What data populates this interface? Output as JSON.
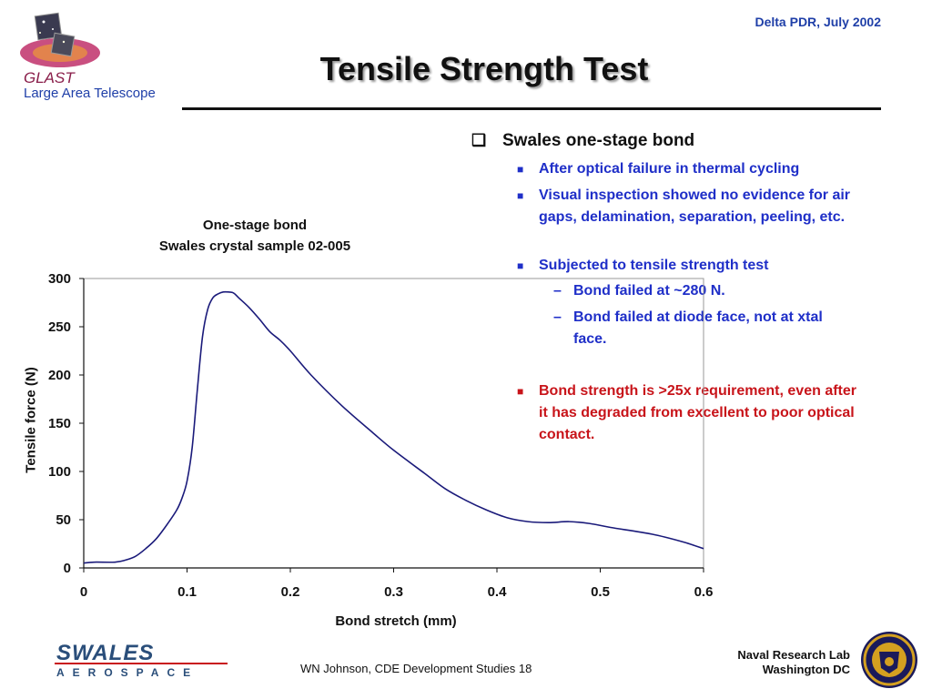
{
  "header": {
    "org_name": "GLAST",
    "org_subtitle": "Large Area Telescope",
    "date": "Delta PDR, July 2002",
    "title": "Tensile Strength Test"
  },
  "bullets": {
    "main": "Swales one-stage bond",
    "items": [
      "After optical failure in thermal cycling",
      "Visual inspection showed no evidence for air gaps, delamination, separation, peeling, etc.",
      "Subjected to tensile strength test"
    ],
    "subitems": [
      "Bond failed at ~280 N.",
      "Bond failed at diode face, not at xtal face."
    ],
    "highlight": "Bond strength is >25x requirement, even after it has degraded from excellent to poor optical contact."
  },
  "chart_data": {
    "type": "line",
    "title": "One-stage bond",
    "subtitle": "Swales crystal sample 02-005",
    "xlabel": "Bond stretch (mm)",
    "ylabel": "Tensile force (N)",
    "xlim": [
      0,
      0.6
    ],
    "ylim": [
      0,
      300
    ],
    "xticks": [
      "0",
      "0.1",
      "0.2",
      "0.3",
      "0.4",
      "0.5",
      "0.6"
    ],
    "yticks": [
      "0",
      "50",
      "100",
      "150",
      "200",
      "250",
      "300"
    ],
    "grid": false,
    "line_color": "#1a1a7a",
    "series": [
      {
        "x": [
          0,
          0.01,
          0.03,
          0.04,
          0.05,
          0.06,
          0.07,
          0.08,
          0.09,
          0.095,
          0.1,
          0.105,
          0.11,
          0.115,
          0.12,
          0.125,
          0.13,
          0.135,
          0.14,
          0.145,
          0.15,
          0.16,
          0.17,
          0.18,
          0.19,
          0.2,
          0.22,
          0.25,
          0.28,
          0.3,
          0.33,
          0.35,
          0.37,
          0.39,
          0.41,
          0.43,
          0.45,
          0.47,
          0.49,
          0.51,
          0.55,
          0.58,
          0.6
        ],
        "y": [
          5,
          6,
          6,
          8,
          12,
          20,
          30,
          44,
          60,
          72,
          90,
          125,
          185,
          240,
          268,
          280,
          284,
          286,
          286,
          285,
          280,
          270,
          258,
          245,
          236,
          225,
          200,
          168,
          140,
          122,
          98,
          82,
          70,
          60,
          52,
          48,
          47,
          48,
          46,
          42,
          35,
          27,
          20
        ]
      }
    ]
  },
  "footer": {
    "company": "SWALES",
    "company_sub": "AEROSPACE",
    "center_text": "WN Johnson, CDE Development Studies 18",
    "lab_line1": "Naval Research Lab",
    "lab_line2": "Washington DC"
  }
}
